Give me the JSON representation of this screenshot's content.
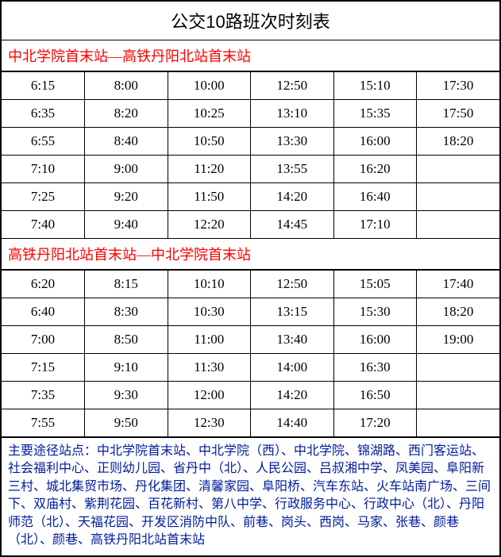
{
  "title": "公交10路班次时刻表",
  "colors": {
    "border": "#000000",
    "title_text": "#000000",
    "direction_text": "#ff0000",
    "cell_text": "#000000",
    "notes_text": "#001b9c",
    "background": "#ffffff"
  },
  "typography": {
    "title_fontsize": 22,
    "direction_fontsize": 18,
    "cell_fontsize": 17,
    "notes_fontsize": 16
  },
  "directions": [
    {
      "label": "中北学院首末站—高铁丹阳北站首末站",
      "columns": 6,
      "rows": [
        [
          "6:15",
          "8:00",
          "10:00",
          "12:50",
          "15:10",
          "17:30"
        ],
        [
          "6:35",
          "8:20",
          "10:25",
          "13:10",
          "15:35",
          "17:50"
        ],
        [
          "6:55",
          "8:40",
          "10:50",
          "13:30",
          "16:00",
          "18:20"
        ],
        [
          "7:10",
          "9:00",
          "11:20",
          "13:55",
          "16:20",
          ""
        ],
        [
          "7:25",
          "9:20",
          "11:50",
          "14:20",
          "16:40",
          ""
        ],
        [
          "7:40",
          "9:40",
          "12:20",
          "14:45",
          "17:10",
          ""
        ]
      ]
    },
    {
      "label": "高铁丹阳北站首末站—中北学院首末站",
      "columns": 6,
      "rows": [
        [
          "6:20",
          "8:15",
          "10:10",
          "12:50",
          "15:05",
          "17:40"
        ],
        [
          "6:40",
          "8:30",
          "10:30",
          "13:15",
          "15:30",
          "18:20"
        ],
        [
          "7:00",
          "8:50",
          "11:00",
          "13:40",
          "16:00",
          "19:00"
        ],
        [
          "7:15",
          "9:10",
          "11:30",
          "14:00",
          "16:30",
          ""
        ],
        [
          "7:35",
          "9:30",
          "12:00",
          "14:20",
          "16:50",
          ""
        ],
        [
          "7:55",
          "9:50",
          "12:30",
          "14:40",
          "17:20",
          ""
        ]
      ]
    }
  ],
  "notes": "主要途径站点：中北学院首末站、中北学院（西）、中北学院、锦湖路、西门客运站、社会福利中心、正则幼儿园、省丹中（北）、人民公园、吕叔湘中学、凤美园、阜阳新三村、城北集贸市场、丹化集团、清馨家园、阜阳桥、汽车东站、火车站南广场、三间下、双庙村、紫荆花园、百花新村、第八中学、行政服务中心、行政中心（北）、丹阳师范（北）、天福花园、开发区消防中队、前巷、岗头、西岗、马家、张巷、颜巷（北）、颜巷、高铁丹阳北站首末站"
}
